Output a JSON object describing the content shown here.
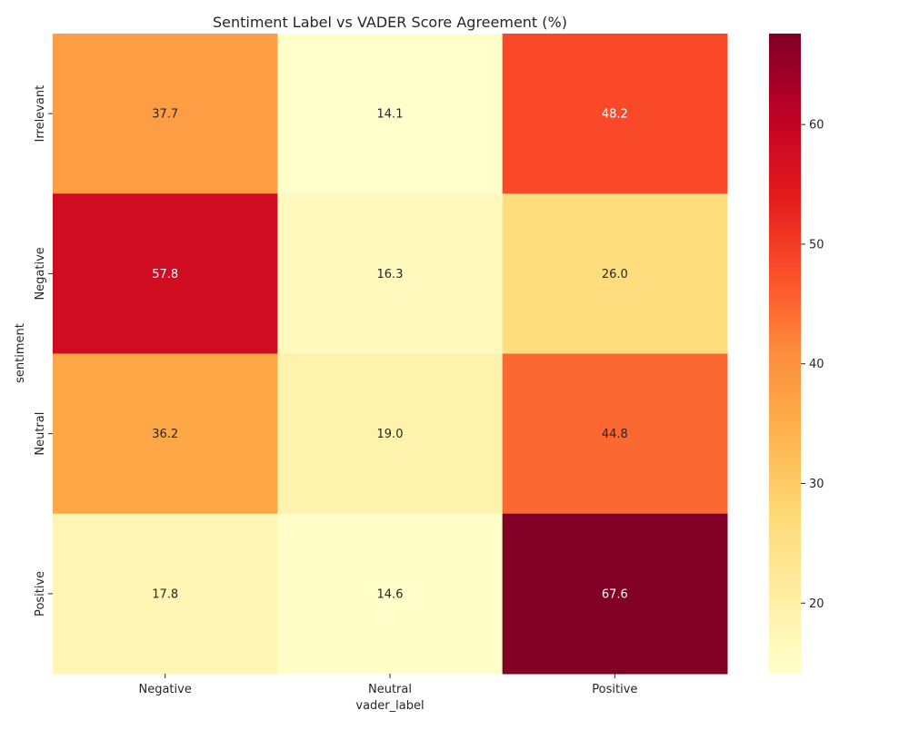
{
  "chart_data": {
    "type": "heatmap",
    "title": "Sentiment Label vs VADER Score Agreement (%)",
    "xlabel": "vader_label",
    "ylabel": "sentiment",
    "x_categories": [
      "Negative",
      "Neutral",
      "Positive"
    ],
    "y_categories": [
      "Irrelevant",
      "Negative",
      "Neutral",
      "Positive"
    ],
    "values": [
      [
        37.7,
        14.1,
        48.2
      ],
      [
        57.8,
        16.3,
        26.0
      ],
      [
        36.2,
        19.0,
        44.8
      ],
      [
        17.8,
        14.6,
        67.6
      ]
    ],
    "annotations": [
      [
        "37.7",
        "14.1",
        "48.2"
      ],
      [
        "57.8",
        "16.3",
        "26.0"
      ],
      [
        "36.2",
        "19.0",
        "44.8"
      ],
      [
        "17.8",
        "14.6",
        "67.6"
      ]
    ],
    "colormap": "YlOrRd",
    "colorbar": {
      "range": [
        14.1,
        67.6
      ],
      "ticks": [
        20,
        30,
        40,
        50,
        60
      ],
      "tick_labels": [
        "20",
        "30",
        "40",
        "50",
        "60"
      ]
    },
    "grid": false,
    "legend": "colorbar-right"
  }
}
